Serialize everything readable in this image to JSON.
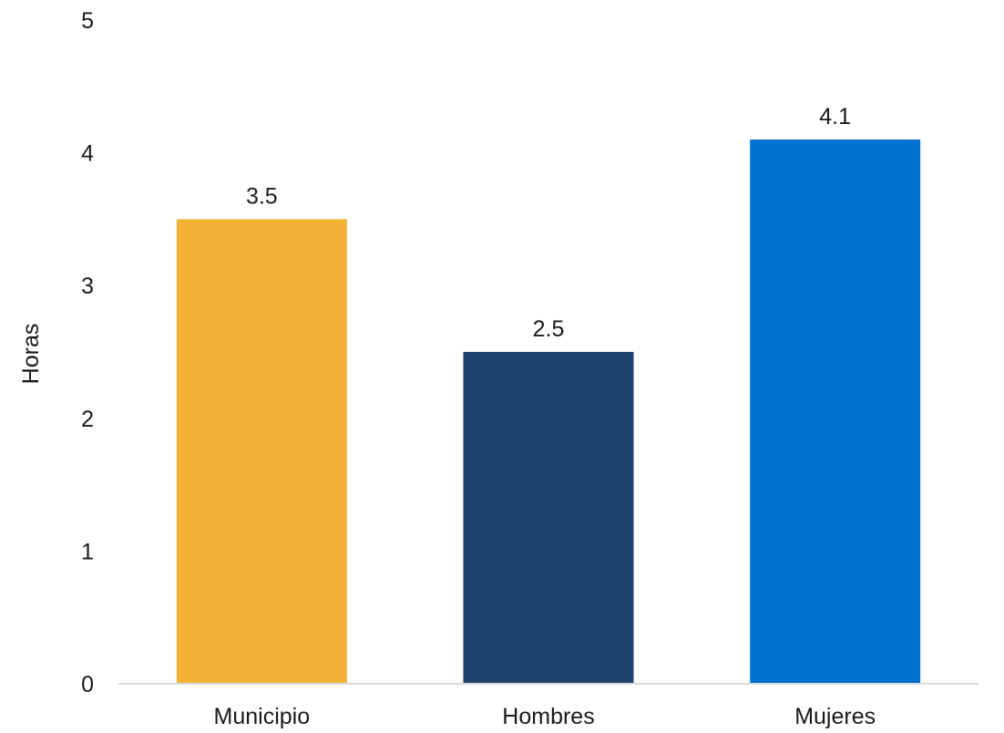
{
  "chart_data": {
    "type": "bar",
    "categories": [
      "Municipio",
      "Hombres",
      "Mujeres"
    ],
    "values": [
      3.5,
      2.5,
      4.1
    ],
    "value_labels": [
      "3.5",
      "2.5",
      "4.1"
    ],
    "bar_colors": [
      "#F2B236",
      "#1C426D",
      "#0072CE"
    ],
    "title": "",
    "xlabel": "",
    "ylabel": "Horas",
    "ylim": [
      0,
      5
    ],
    "yticks": [
      "0",
      "1",
      "2",
      "3",
      "4",
      "5"
    ],
    "grid": false,
    "axis_color": "#D9D9D9",
    "text_color": "#1a1a1a"
  }
}
